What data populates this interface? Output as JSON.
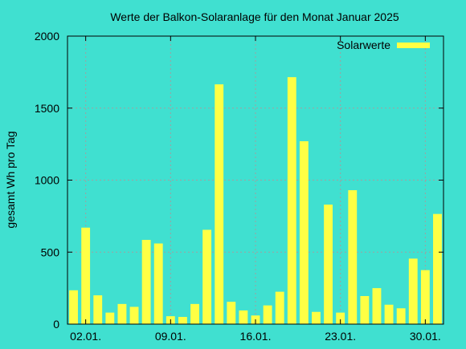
{
  "colors": {
    "background": "#40e0d0",
    "bar": "#ffff44",
    "grid": "#a0a0a0",
    "axis": "#000000"
  },
  "chart_data": {
    "type": "bar",
    "title": "Werte der Balkon-Solaranlage für den Monat Januar 2025",
    "ylabel": "gesamt Wh pro Tag",
    "xlabel": "",
    "ylim": [
      0,
      2000
    ],
    "yticks": [
      0,
      500,
      1000,
      1500,
      2000
    ],
    "xticks": [
      "02.01.",
      "09.01.",
      "16.01.",
      "23.01.",
      "30.01."
    ],
    "x_tick_indices": [
      1,
      8,
      15,
      22,
      29
    ],
    "categories": [
      "01.01.",
      "02.01.",
      "03.01.",
      "04.01.",
      "05.01.",
      "06.01.",
      "07.01.",
      "08.01.",
      "09.01.",
      "10.01.",
      "11.01.",
      "12.01.",
      "13.01.",
      "14.01.",
      "15.01.",
      "16.01.",
      "17.01.",
      "18.01.",
      "19.01.",
      "20.01.",
      "21.01.",
      "22.01.",
      "23.01.",
      "24.01.",
      "25.01.",
      "26.01.",
      "27.01.",
      "28.01.",
      "29.01.",
      "30.01.",
      "31.01."
    ],
    "series": [
      {
        "name": "Solarwerte",
        "values": [
          235,
          670,
          200,
          80,
          140,
          120,
          585,
          560,
          55,
          50,
          140,
          655,
          1665,
          155,
          95,
          60,
          130,
          225,
          1715,
          1270,
          85,
          830,
          80,
          930,
          195,
          250,
          135,
          110,
          455,
          375,
          765
        ]
      }
    ],
    "grid": true,
    "legend_position": "top-right"
  }
}
